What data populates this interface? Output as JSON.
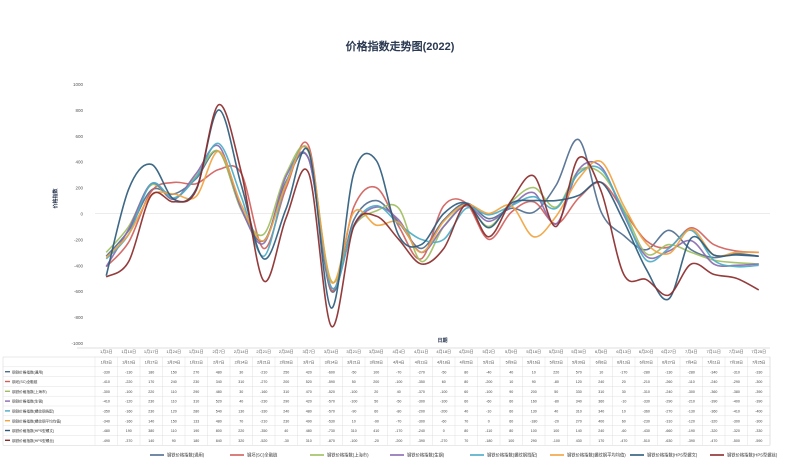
{
  "chart_data": {
    "type": "line",
    "title": "价格指数走势图(2022)",
    "xlabel": "日期",
    "ylabel": "价格指数",
    "ylim": [
      -1000,
      1000
    ],
    "y_ticks": [
      -1000,
      -800,
      -600,
      -400,
      -200,
      0,
      200,
      400,
      600,
      800,
      1000
    ],
    "grid": false,
    "legend_position": "bottom",
    "categories": [
      "1月3日",
      "1月10日",
      "1月17日",
      "1月24日",
      "1月31日",
      "2月7日",
      "2月14日",
      "2月21日",
      "2月28日",
      "3月7日",
      "3月14日",
      "3月21日",
      "3月28日",
      "4月4日",
      "4月11日",
      "4月18日",
      "4月25日",
      "5月2日",
      "5月9日",
      "5月16日",
      "5月23日",
      "5月30日",
      "6月6日",
      "6月13日",
      "6月20日",
      "6月27日",
      "7月4日",
      "7月11日",
      "7月18日",
      "7月25日"
    ],
    "series": [
      {
        "name": "钢铁价格指数(通用)",
        "color": "#4f6d8f",
        "values": [
          -330,
          -130,
          180,
          150,
          270,
          480,
          30,
          -210,
          250,
          420,
          -600,
          -50,
          100,
          -70,
          -270,
          -50,
          80,
          -40,
          40,
          10,
          220,
          570,
          10,
          -170,
          -280,
          -130,
          -280,
          -340,
          -310,
          -330
        ]
      },
      {
        "name": "钢坯(SC)全融链",
        "color": "#d0605c",
        "values": [
          -410,
          -220,
          170,
          240,
          230,
          340,
          310,
          -270,
          200,
          520,
          -590,
          50,
          200,
          -100,
          -350,
          60,
          80,
          -200,
          10,
          90,
          -80,
          120,
          240,
          20,
          -210,
          -260,
          -110,
          -240,
          -290,
          -300
        ]
      },
      {
        "name": "钢铁价格指数(上海市)",
        "color": "#9fbf5f",
        "values": [
          -300,
          -100,
          220,
          110,
          290,
          480,
          30,
          -160,
          310,
          470,
          -520,
          -100,
          20,
          40,
          -370,
          -100,
          60,
          -100,
          90,
          200,
          50,
          330,
          310,
          30,
          -310,
          -240,
          -300,
          -360,
          -380,
          -390
        ]
      },
      {
        "name": "钢铁价格指数(生钢)",
        "color": "#8a6bb0",
        "values": [
          -410,
          -120,
          230,
          110,
          310,
          520,
          40,
          -230,
          290,
          420,
          -570,
          -100,
          50,
          -50,
          -300,
          -100,
          60,
          -60,
          60,
          160,
          -80,
          340,
          360,
          -10,
          -330,
          -290,
          -210,
          -390,
          -400,
          -390
        ]
      },
      {
        "name": "钢铁价格指数(螺纹钢挡配)",
        "color": "#4bacc6",
        "values": [
          -350,
          -160,
          230,
          120,
          280,
          540,
          130,
          -330,
          240,
          480,
          -570,
          -90,
          60,
          -80,
          -200,
          -200,
          40,
          -10,
          60,
          130,
          40,
          310,
          340,
          10,
          -360,
          -270,
          -130,
          -360,
          -410,
          -400
        ]
      },
      {
        "name": "钢铁价格指数(螺纹钢平均均值)",
        "color": "#f1a340",
        "values": [
          -340,
          -160,
          140,
          150,
          133,
          480,
          70,
          -210,
          230,
          490,
          -530,
          10,
          -90,
          -70,
          -300,
          -60,
          70,
          0,
          60,
          -180,
          -20,
          270,
          400,
          60,
          -230,
          -310,
          -120,
          -320,
          -300,
          -300
        ]
      },
      {
        "name": "钢铁价格指数(HPS型螺文)",
        "color": "#2d5b7c",
        "values": [
          -480,
          190,
          380,
          110,
          190,
          800,
          220,
          -350,
          40,
          480,
          -730,
          310,
          410,
          -170,
          -240,
          0,
          80,
          -110,
          80,
          100,
          100,
          140,
          240,
          -60,
          -430,
          -660,
          -190,
          -320,
          -320,
          -330
        ]
      },
      {
        "name": "钢铁价格指数(HPS型螺丝)",
        "color": "#8b2b2b",
        "values": [
          -490,
          -370,
          140,
          90,
          180,
          840,
          320,
          -520,
          -30,
          310,
          -870,
          -100,
          -20,
          -200,
          -390,
          -270,
          70,
          -180,
          100,
          290,
          -100,
          430,
          170,
          -470,
          -510,
          -630,
          -390,
          -470,
          -500,
          -590
        ]
      }
    ]
  }
}
